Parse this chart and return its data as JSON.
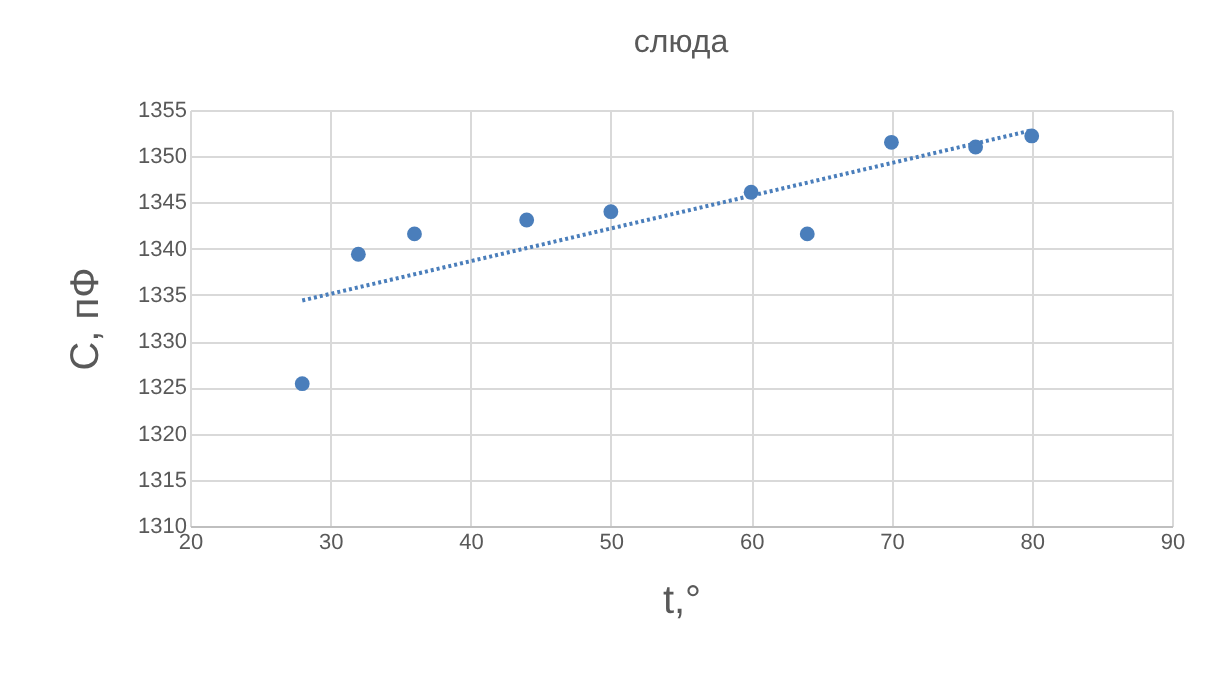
{
  "chart_data": {
    "type": "scatter",
    "title": "слюда",
    "xlabel": "t,°",
    "ylabel": "C, пФ",
    "x": [
      28,
      32,
      36,
      44,
      50,
      60,
      64,
      70,
      76,
      80
    ],
    "xlim": [
      20,
      90
    ],
    "xticks": [
      20,
      30,
      40,
      50,
      60,
      70,
      80,
      90
    ],
    "ylim": [
      1310,
      1355
    ],
    "yticks": [
      1310,
      1315,
      1320,
      1325,
      1330,
      1335,
      1340,
      1345,
      1350,
      1355
    ],
    "grid": true,
    "marker": "circle",
    "series": [
      {
        "color": "#4a7ebb",
        "values": [
          1325.4,
          1339.4,
          1341.6,
          1343.1,
          1344,
          1346.1,
          1341.6,
          1351.5,
          1351,
          1352.2
        ]
      },
      {
        "type": "line",
        "marker": "none",
        "line_style": "dotted",
        "color": "#4a7ebb",
        "x": [
          28,
          80
        ],
        "values": [
          1334.4,
          1352.8
        ]
      }
    ]
  }
}
